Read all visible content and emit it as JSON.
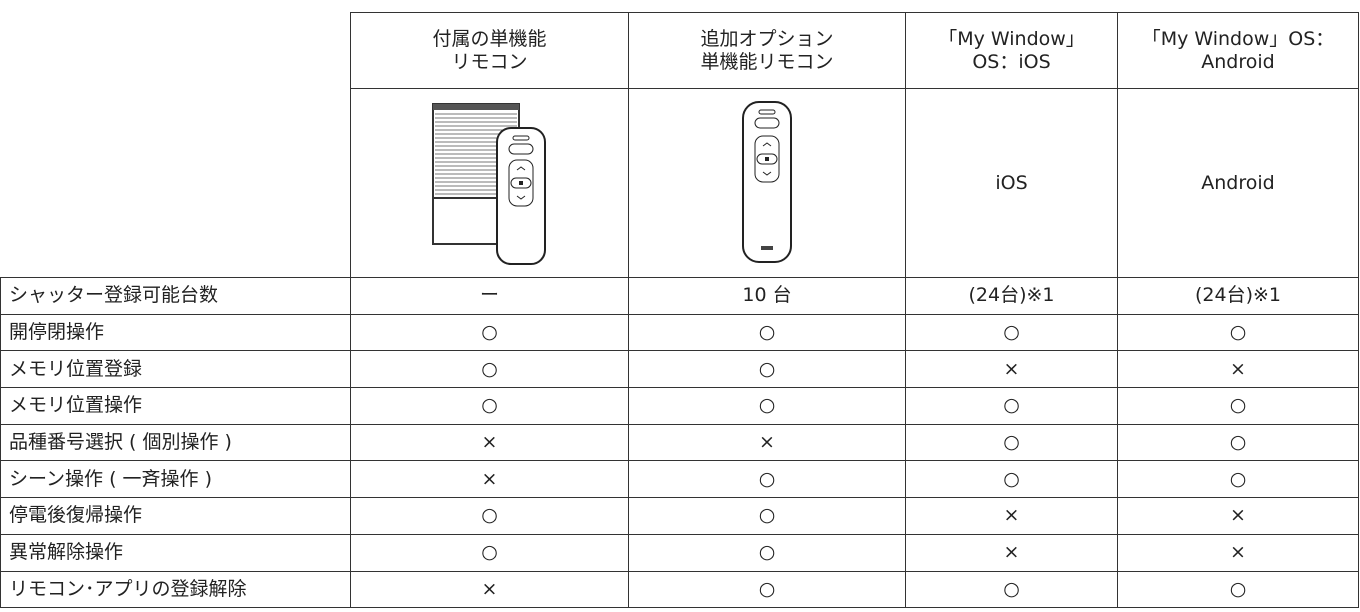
{
  "header": {
    "columns": [
      [
        "付属の単機能",
        "リモコン"
      ],
      [
        "追加オプション",
        "単機能リモコン"
      ],
      [
        "「My Window」",
        "OS：iOS"
      ],
      [
        "「My Window」OS：",
        "Android"
      ]
    ]
  },
  "image_row": {
    "ios": "iOS",
    "android": "Android"
  },
  "table": {
    "rows": [
      [
        "シャッター登録可能台数",
        "ー",
        "10 台",
        "(24台)※1",
        "(24台)※1"
      ],
      [
        "開停閉操作",
        "○",
        "○",
        "○",
        "○"
      ],
      [
        "メモリ位置登録",
        "○",
        "○",
        "×",
        "×"
      ],
      [
        "メモリ位置操作",
        "○",
        "○",
        "○",
        "○"
      ],
      [
        "品種番号選択 ( 個別操作 )",
        "×",
        "×",
        "○",
        "○"
      ],
      [
        "シーン操作 ( 一斉操作 )",
        "×",
        "○",
        "○",
        "○"
      ],
      [
        "停電後復帰操作",
        "○",
        "○",
        "×",
        "×"
      ],
      [
        "異常解除操作",
        "○",
        "○",
        "×",
        "×"
      ],
      [
        "リモコン･アプリの登録解除",
        "×",
        "○",
        "○",
        "○"
      ]
    ]
  }
}
